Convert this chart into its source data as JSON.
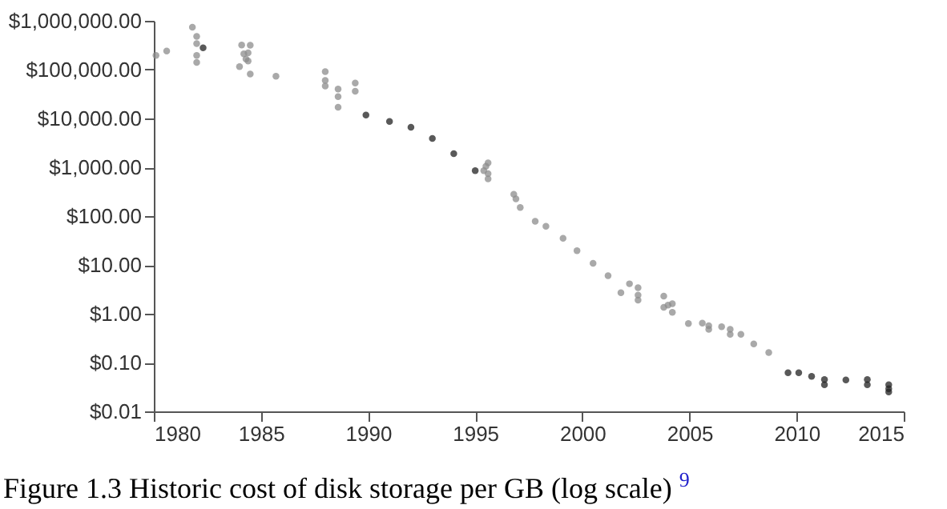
{
  "chart_data": {
    "type": "scatter",
    "marker": "circle",
    "log": "y",
    "grid": false,
    "xlim": [
      1980,
      2015
    ],
    "xticks": [
      1980,
      1985,
      1990,
      1995,
      2000,
      2005,
      2010,
      2015
    ],
    "ylim": [
      0.01,
      1000000
    ],
    "yticks": [
      {
        "value": 0.01,
        "label": "$0.01"
      },
      {
        "value": 0.1,
        "label": "$0.10"
      },
      {
        "value": 1,
        "label": "$1.00"
      },
      {
        "value": 10,
        "label": "$10.00"
      },
      {
        "value": 100,
        "label": "$100.00"
      },
      {
        "value": 1000,
        "label": "$1,000.00"
      },
      {
        "value": 10000,
        "label": "$10,000.00"
      },
      {
        "value": 100000,
        "label": "$100,000.00"
      },
      {
        "value": 1000000,
        "label": "$1,000,000.00"
      }
    ],
    "series": [
      {
        "color": "#8c8c8c",
        "x": [
          1980.1,
          1980.6,
          1981.8,
          1982.0,
          1982.0,
          1982.0,
          1982.0,
          1984.1,
          1984.5,
          1984.2,
          1984.4,
          1984.0,
          1984.4,
          1984.5,
          1984.3,
          1985.7,
          1988.0,
          1988.0,
          1988.0,
          1988.6,
          1988.6,
          1988.6,
          1989.4,
          1989.4,
          1995.6,
          1995.5,
          1995.6,
          1995.6,
          1995.4,
          1996.8,
          1996.9,
          1997.1,
          1997.8,
          1998.3,
          1999.1,
          1999.75,
          2000.5,
          2001.2,
          2001.8,
          2002.2,
          2002.6,
          2002.6,
          2002.6,
          2003.8,
          2003.8,
          2004.0,
          2004.2,
          2004.2,
          2004.95,
          2005.6,
          2005.9,
          2005.9,
          2006.5,
          2006.9,
          2006.9,
          2007.4,
          2008.0,
          2008.7
        ],
        "values": [
          195000,
          240000,
          740000,
          480000,
          340000,
          195000,
          140000,
          320000,
          315000,
          210000,
          220000,
          115000,
          150000,
          81000,
          165000,
          73000,
          91000,
          60000,
          46000,
          40000,
          28000,
          17000,
          53000,
          36000,
          1230,
          1050,
          740,
          580,
          850,
          280,
          225,
          150,
          78,
          62,
          35,
          19.5,
          10.8,
          6.0,
          2.7,
          4.1,
          3.4,
          1.9,
          2.4,
          2.3,
          1.35,
          1.5,
          1.07,
          1.6,
          0.63,
          0.64,
          0.57,
          0.48,
          0.54,
          0.48,
          0.38,
          0.38,
          0.24,
          0.16
        ]
      },
      {
        "color": "#222222",
        "x": [
          1982.3,
          1989.9,
          1991.0,
          1992.0,
          1993.0,
          1994.0,
          1995.0,
          2009.6,
          2010.1,
          2010.7,
          2011.3,
          2011.3,
          2012.3,
          2013.3,
          2013.3,
          2014.3,
          2014.3,
          2014.3
        ],
        "values": [
          280000,
          11700,
          8700,
          6600,
          3900,
          1900,
          850,
          0.062,
          0.062,
          0.052,
          0.045,
          0.035,
          0.044,
          0.045,
          0.035,
          0.035,
          0.029,
          0.025
        ]
      }
    ],
    "annotations": [
      "Figure 1.3 Historic cost of disk storage per GB (log scale) $^{9}$"
    ]
  }
}
